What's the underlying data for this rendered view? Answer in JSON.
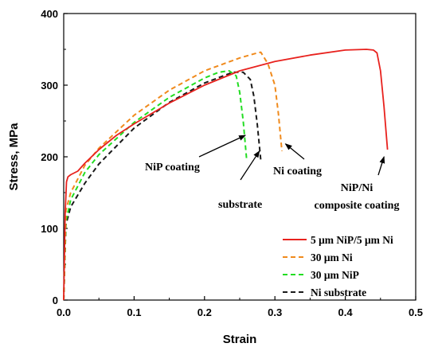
{
  "chart_data": {
    "type": "line",
    "title": "",
    "xlabel": "Strain",
    "ylabel": "Stress, MPa",
    "xlim": [
      0,
      0.5
    ],
    "ylim": [
      0,
      400
    ],
    "xticks": [
      "0.0",
      "0.1",
      "0.2",
      "0.3",
      "0.4",
      "0.5"
    ],
    "yticks": [
      "0",
      "100",
      "200",
      "300",
      "400"
    ],
    "grid": false,
    "legend_position": "lower-right",
    "series": [
      {
        "name": "5 μm NiP/5 μm Ni",
        "color": "#e8221e",
        "dash": "solid",
        "x": [
          0,
          0.002,
          0.004,
          0.006,
          0.01,
          0.02,
          0.03,
          0.05,
          0.075,
          0.1,
          0.15,
          0.2,
          0.25,
          0.3,
          0.35,
          0.4,
          0.43,
          0.44,
          0.445,
          0.45,
          0.455,
          0.46
        ],
        "y": [
          0,
          120,
          165,
          172,
          175,
          180,
          191,
          210,
          230,
          246,
          275,
          300,
          320,
          333,
          342,
          349,
          350,
          349,
          345,
          320,
          270,
          210
        ]
      },
      {
        "name": "30 μm Ni",
        "color": "#f08a1c",
        "dash": "dashed",
        "x": [
          0,
          0.003,
          0.01,
          0.03,
          0.05,
          0.1,
          0.15,
          0.2,
          0.25,
          0.275,
          0.28,
          0.29,
          0.3,
          0.305,
          0.31
        ],
        "y": [
          0,
          125,
          150,
          188,
          212,
          258,
          293,
          320,
          338,
          345,
          346,
          330,
          300,
          260,
          208
        ]
      },
      {
        "name": "30 μm NiP",
        "color": "#22dd22",
        "dash": "dashed",
        "x": [
          0,
          0.003,
          0.01,
          0.03,
          0.05,
          0.1,
          0.15,
          0.2,
          0.22,
          0.235,
          0.245,
          0.25,
          0.255,
          0.26
        ],
        "y": [
          0,
          110,
          140,
          178,
          203,
          248,
          283,
          310,
          318,
          320,
          313,
          290,
          250,
          195
        ]
      },
      {
        "name": "Ni substrate",
        "color": "#1a1a1a",
        "dash": "dashed",
        "x": [
          0,
          0.003,
          0.01,
          0.03,
          0.05,
          0.1,
          0.15,
          0.2,
          0.24,
          0.255,
          0.265,
          0.27,
          0.275,
          0.28
        ],
        "y": [
          0,
          105,
          130,
          163,
          190,
          240,
          276,
          303,
          318,
          318,
          308,
          285,
          245,
          195
        ]
      }
    ],
    "annotations": [
      {
        "lines": [
          "NiP coating"
        ],
        "target": [
          0.258,
          230
        ]
      },
      {
        "lines": [
          "Ni coating"
        ],
        "target": [
          0.315,
          218
        ]
      },
      {
        "lines": [
          "substrate"
        ],
        "target": [
          0.278,
          208
        ]
      },
      {
        "lines": [
          "NiP/Ni",
          "composite coating"
        ],
        "target": [
          0.455,
          200
        ]
      }
    ]
  }
}
